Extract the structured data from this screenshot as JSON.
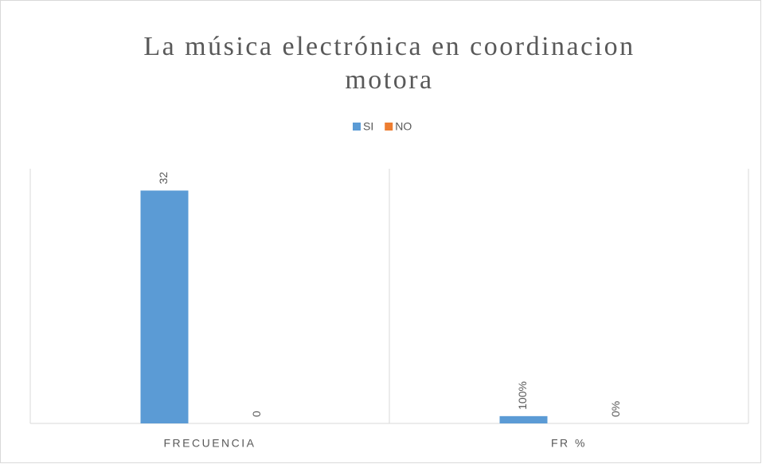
{
  "chart_data": {
    "type": "bar",
    "title": "La música electrónica en coordinacion motora",
    "categories": [
      "FRECUENCIA",
      "FR %"
    ],
    "series": [
      {
        "name": "SI",
        "color": "#5b9bd5",
        "values": [
          32,
          1
        ],
        "value_labels": [
          "32",
          "100%"
        ]
      },
      {
        "name": "NO",
        "color": "#ed7d31",
        "values": [
          0,
          0
        ],
        "value_labels": [
          "0",
          "0%"
        ]
      }
    ],
    "ylim": [
      0,
      35
    ],
    "grid": true
  }
}
